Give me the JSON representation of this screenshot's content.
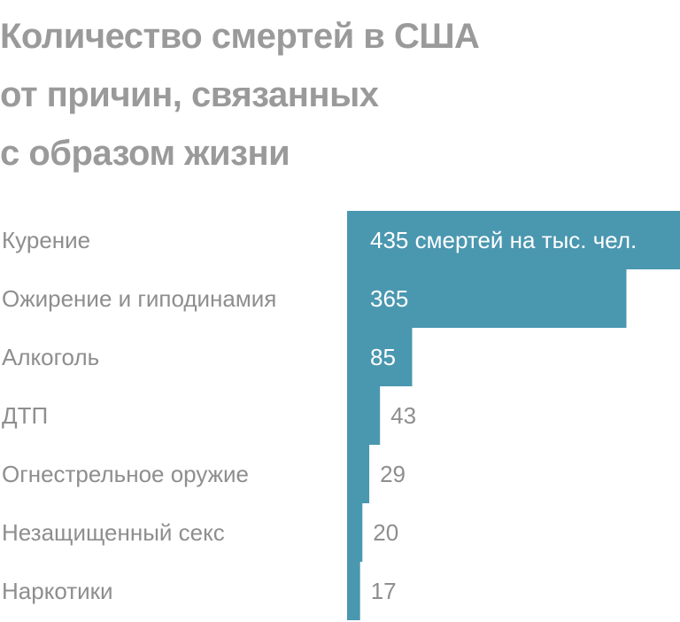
{
  "chart_data": {
    "type": "bar",
    "orientation": "horizontal",
    "title_lines": [
      "Количество смертей в США",
      "от причин, связанных",
      "с образом жизни"
    ],
    "categories": [
      "Курение",
      "Ожирение и гиподинамия",
      "Алкоголь",
      "ДТП",
      "Огнестрельное оружие",
      "Незащищенный секс",
      "Наркотики"
    ],
    "values": [
      435,
      365,
      85,
      43,
      29,
      20,
      17
    ],
    "value_labels": [
      "435 смертей на тыс. чел.",
      "365",
      "85",
      "43",
      "29",
      "20",
      "17"
    ],
    "xlim": [
      0,
      435
    ],
    "grid": false,
    "legend": "none",
    "colors": {
      "bar": "#4a97b0",
      "title": "#9a9a9a",
      "label": "#8e8e8e",
      "value_inside": "#ffffff"
    }
  }
}
